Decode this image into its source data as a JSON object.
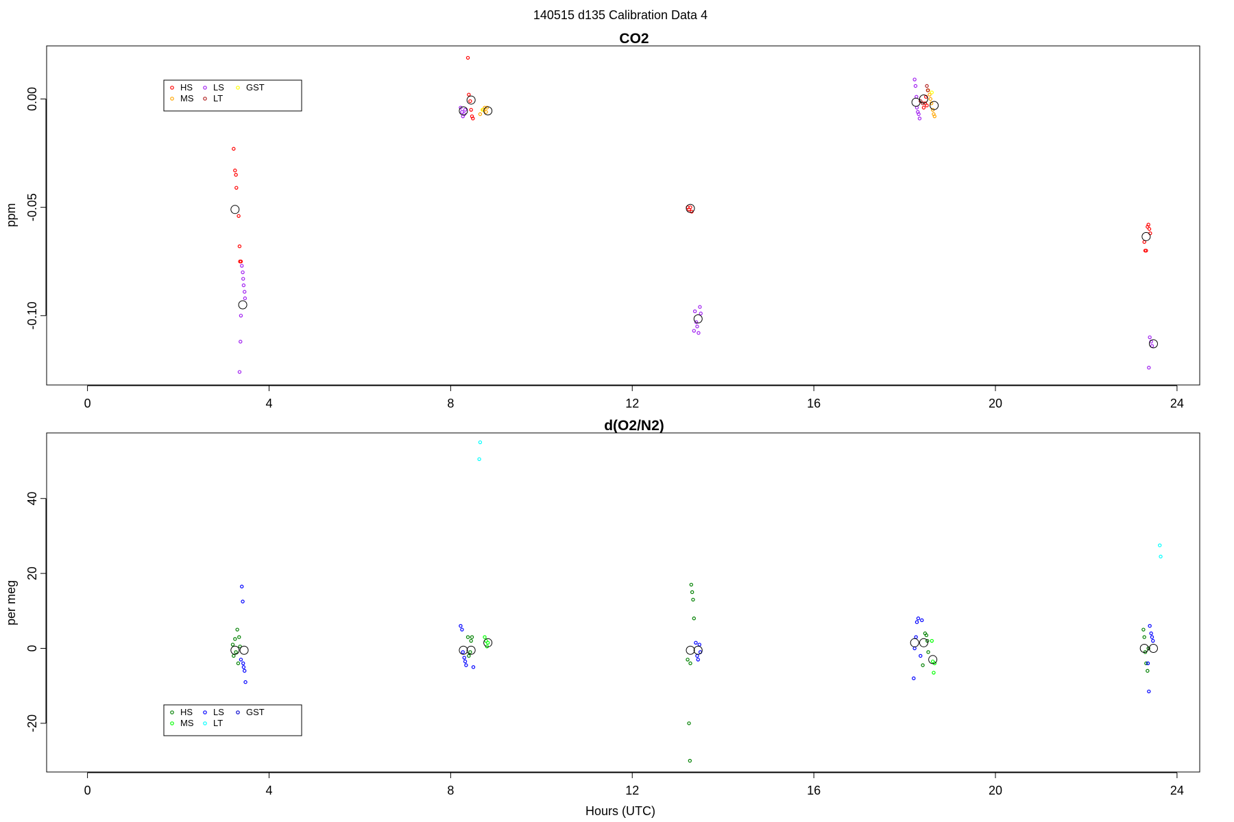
{
  "figure": {
    "supertitle": "140515   d135   Calibration Data 4"
  },
  "chart_data": [
    {
      "type": "scatter",
      "title": "CO2",
      "xlabel": "",
      "ylabel": "ppm",
      "xlim": [
        -0.9,
        24.5
      ],
      "ylim": [
        -0.132,
        0.0245
      ],
      "xticks": [
        0,
        4,
        8,
        12,
        16,
        20,
        24
      ],
      "yticks": [
        0.0,
        -0.05,
        -0.1
      ],
      "ytick_labels": [
        "0.00",
        "-0.05",
        "-0.10"
      ],
      "grid": false,
      "legend_position": "top-left",
      "legend": [
        {
          "label": "HS",
          "color": "#ff0000"
        },
        {
          "label": "LS",
          "color": "#a020f0"
        },
        {
          "label": "GST",
          "color": "#ffff00"
        },
        {
          "label": "MS",
          "color": "#ffa500"
        },
        {
          "label": "LT",
          "color": "#b22222"
        }
      ],
      "series": [
        {
          "name": "HS",
          "color": "#ff0000",
          "points": [
            [
              3.22,
              -0.023
            ],
            [
              3.25,
              -0.033
            ],
            [
              3.27,
              -0.035
            ],
            [
              3.28,
              -0.041
            ],
            [
              3.33,
              -0.054
            ],
            [
              3.35,
              -0.068
            ],
            [
              3.36,
              -0.075
            ],
            [
              3.38,
              -0.075
            ],
            [
              8.38,
              0.019
            ],
            [
              8.4,
              0.002
            ],
            [
              8.43,
              -0.001
            ],
            [
              8.45,
              -0.005
            ],
            [
              8.47,
              -0.008
            ],
            [
              8.49,
              -0.009
            ],
            [
              13.22,
              -0.05
            ],
            [
              13.25,
              -0.051
            ],
            [
              13.28,
              -0.05
            ],
            [
              13.31,
              -0.052
            ],
            [
              18.42,
              -0.004
            ],
            [
              18.45,
              -0.002
            ],
            [
              18.47,
              0.001
            ],
            [
              18.49,
              -0.003
            ],
            [
              23.28,
              -0.066
            ],
            [
              23.3,
              -0.07
            ],
            [
              23.32,
              -0.07
            ],
            [
              23.35,
              -0.059
            ],
            [
              23.37,
              -0.058
            ],
            [
              23.39,
              -0.06
            ],
            [
              23.41,
              -0.062
            ]
          ]
        },
        {
          "name": "LS",
          "color": "#a020f0",
          "points": [
            [
              3.4,
              -0.077
            ],
            [
              3.42,
              -0.08
            ],
            [
              3.43,
              -0.083
            ],
            [
              3.44,
              -0.086
            ],
            [
              3.46,
              -0.089
            ],
            [
              3.47,
              -0.092
            ],
            [
              3.38,
              -0.1
            ],
            [
              3.37,
              -0.112
            ],
            [
              3.35,
              -0.126
            ],
            [
              8.22,
              -0.004
            ],
            [
              8.25,
              -0.006
            ],
            [
              8.27,
              -0.008
            ],
            [
              8.3,
              -0.007
            ],
            [
              8.32,
              -0.005
            ],
            [
              13.38,
              -0.098
            ],
            [
              13.41,
              -0.103
            ],
            [
              13.43,
              -0.105
            ],
            [
              13.46,
              -0.108
            ],
            [
              13.49,
              -0.096
            ],
            [
              13.51,
              -0.099
            ],
            [
              13.36,
              -0.107
            ],
            [
              18.22,
              0.009
            ],
            [
              18.24,
              0.006
            ],
            [
              18.26,
              0.001
            ],
            [
              18.27,
              -0.004
            ],
            [
              18.29,
              -0.006
            ],
            [
              18.31,
              -0.007
            ],
            [
              18.33,
              -0.009
            ],
            [
              23.4,
              -0.11
            ],
            [
              23.43,
              -0.112
            ],
            [
              23.45,
              -0.114
            ],
            [
              23.38,
              -0.124
            ]
          ]
        },
        {
          "name": "MS",
          "color": "#ffa500",
          "points": [
            [
              8.65,
              -0.007
            ],
            [
              8.72,
              -0.005
            ],
            [
              8.75,
              -0.004
            ],
            [
              8.78,
              -0.006
            ],
            [
              8.8,
              -0.004
            ],
            [
              18.52,
              0.004
            ],
            [
              18.55,
              0.002
            ],
            [
              18.57,
              0.0
            ],
            [
              18.59,
              -0.002
            ],
            [
              18.62,
              -0.005
            ],
            [
              18.64,
              -0.007
            ],
            [
              18.66,
              -0.008
            ]
          ]
        },
        {
          "name": "LT",
          "color": "#b22222",
          "points": [
            [
              18.35,
              -0.001
            ],
            [
              18.4,
              -0.002
            ],
            [
              18.49,
              0.006
            ],
            [
              18.51,
              0.004
            ]
          ]
        },
        {
          "name": "GST",
          "color": "#ffff00",
          "points": [
            [
              8.7,
              -0.005
            ],
            [
              18.6,
              0.003
            ]
          ]
        },
        {
          "name": "",
          "color": "#000000",
          "large": true,
          "points": [
            [
              3.25,
              -0.051
            ],
            [
              3.42,
              -0.095
            ],
            [
              8.28,
              -0.0055
            ],
            [
              8.45,
              -0.0005
            ],
            [
              8.82,
              -0.0055
            ],
            [
              13.28,
              -0.0505
            ],
            [
              13.45,
              -0.1015
            ],
            [
              18.25,
              -0.0015
            ],
            [
              18.42,
              0.0
            ],
            [
              18.65,
              -0.003
            ],
            [
              23.32,
              -0.0635
            ],
            [
              23.48,
              -0.113
            ]
          ]
        }
      ]
    },
    {
      "type": "scatter",
      "title": "d(O2/N2)",
      "xlabel": "Hours (UTC)",
      "ylabel": "per meg",
      "xlim": [
        -0.9,
        24.5
      ],
      "ylim": [
        -33,
        57.5
      ],
      "xticks": [
        0,
        4,
        8,
        12,
        16,
        20,
        24
      ],
      "yticks": [
        40,
        20,
        0,
        -20
      ],
      "ytick_labels": [
        "40",
        "20",
        "0",
        "-20"
      ],
      "grid": false,
      "legend_position": "bottom-left",
      "legend": [
        {
          "label": "HS",
          "color": "#008000"
        },
        {
          "label": "LS",
          "color": "#0000ff"
        },
        {
          "label": "GST",
          "color": "#0000cd"
        },
        {
          "label": "MS",
          "color": "#00ff00"
        },
        {
          "label": "LT",
          "color": "#00ffff"
        }
      ],
      "series": [
        {
          "name": "HS",
          "color": "#008000",
          "points": [
            [
              3.2,
              1.0
            ],
            [
              3.22,
              -2.0
            ],
            [
              3.25,
              2.5
            ],
            [
              3.27,
              -1.0
            ],
            [
              3.3,
              5.0
            ],
            [
              3.32,
              -4.0
            ],
            [
              3.34,
              3.0
            ],
            [
              3.36,
              0.5
            ],
            [
              8.38,
              3.0
            ],
            [
              8.4,
              -2.0
            ],
            [
              8.43,
              -1.0
            ],
            [
              8.45,
              2.0
            ],
            [
              8.47,
              3.0
            ],
            [
              13.25,
              -20.0
            ],
            [
              13.27,
              -30.0
            ],
            [
              13.3,
              17.0
            ],
            [
              13.32,
              15.0
            ],
            [
              13.34,
              13.0
            ],
            [
              13.36,
              8.0
            ],
            [
              13.22,
              -3.0
            ],
            [
              13.28,
              -4.0
            ],
            [
              18.45,
              4.0
            ],
            [
              18.48,
              3.5
            ],
            [
              18.5,
              2.0
            ],
            [
              18.52,
              -1.0
            ],
            [
              18.4,
              -4.5
            ],
            [
              23.26,
              5.0
            ],
            [
              23.28,
              3.0
            ],
            [
              23.3,
              -1.0
            ],
            [
              23.32,
              -4.0
            ],
            [
              23.35,
              -6.0
            ],
            [
              23.37,
              0.0
            ]
          ]
        },
        {
          "name": "LS",
          "color": "#0000ff",
          "points": [
            [
              3.4,
              16.5
            ],
            [
              3.42,
              12.5
            ],
            [
              3.44,
              -5.0
            ],
            [
              3.46,
              -6.0
            ],
            [
              3.48,
              -9.0
            ],
            [
              3.43,
              -4.0
            ],
            [
              3.38,
              -3.0
            ],
            [
              8.22,
              6.0
            ],
            [
              8.25,
              5.0
            ],
            [
              8.27,
              -1.0
            ],
            [
              8.3,
              -2.5
            ],
            [
              8.32,
              -3.5
            ],
            [
              8.34,
              -4.5
            ],
            [
              8.5,
              -5.0
            ],
            [
              13.4,
              1.5
            ],
            [
              13.43,
              -2.0
            ],
            [
              13.45,
              -3.0
            ],
            [
              13.48,
              1.0
            ],
            [
              13.5,
              -1.0
            ],
            [
              18.2,
              -8.0
            ],
            [
              18.22,
              0.0
            ],
            [
              18.25,
              3.0
            ],
            [
              18.27,
              7.0
            ],
            [
              18.3,
              8.0
            ],
            [
              18.38,
              7.5
            ],
            [
              18.35,
              -2.0
            ],
            [
              23.4,
              6.0
            ],
            [
              23.43,
              4.0
            ],
            [
              23.45,
              3.0
            ],
            [
              23.38,
              -11.5
            ],
            [
              23.36,
              -4.0
            ],
            [
              23.47,
              2.0
            ]
          ]
        },
        {
          "name": "MS",
          "color": "#00ff00",
          "points": [
            [
              8.75,
              3.0
            ],
            [
              8.78,
              2.0
            ],
            [
              8.8,
              0.5
            ],
            [
              8.82,
              1.5
            ],
            [
              18.6,
              2.0
            ],
            [
              18.62,
              -3.5
            ],
            [
              18.64,
              -6.5
            ],
            [
              18.66,
              -4.0
            ]
          ]
        },
        {
          "name": "LT",
          "color": "#00ffff",
          "points": [
            [
              8.65,
              55.0
            ],
            [
              8.63,
              50.5
            ],
            [
              23.62,
              27.5
            ],
            [
              23.64,
              24.5
            ]
          ]
        },
        {
          "name": "",
          "color": "#000000",
          "large": true,
          "points": [
            [
              3.25,
              -0.5
            ],
            [
              3.45,
              -0.5
            ],
            [
              8.28,
              -0.5
            ],
            [
              8.45,
              -0.5
            ],
            [
              8.82,
              1.5
            ],
            [
              13.28,
              -0.5
            ],
            [
              13.45,
              -0.5
            ],
            [
              18.22,
              1.5
            ],
            [
              18.42,
              1.5
            ],
            [
              18.62,
              -3.0
            ],
            [
              23.28,
              0.0
            ],
            [
              23.48,
              0.0
            ]
          ]
        }
      ]
    }
  ]
}
